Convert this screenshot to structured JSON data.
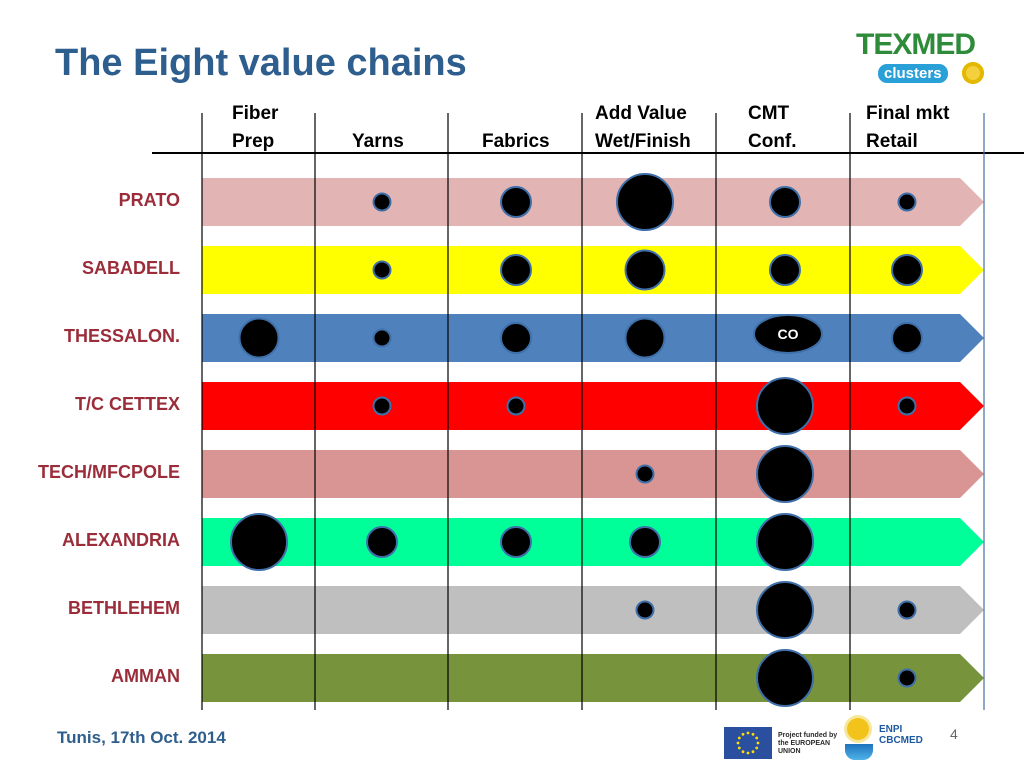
{
  "title": "The Eight value chains",
  "logo": {
    "top_text": "TEXMED",
    "bottom_text": "clusters"
  },
  "columns": [
    {
      "line1": "Fiber",
      "line2": "Prep"
    },
    {
      "line1": "",
      "line2": "Yarns"
    },
    {
      "line1": "",
      "line2": "Fabrics"
    },
    {
      "line1": "Add Value",
      "line2": "Wet/Finish"
    },
    {
      "line1": "CMT",
      "line2": "Conf."
    },
    {
      "line1": "Final mkt",
      "line2": "Retail"
    }
  ],
  "rows": [
    {
      "label": "PRATO",
      "color": "#e2b4b4",
      "dots": [
        null,
        "s",
        "m",
        "xl",
        "m",
        "s"
      ]
    },
    {
      "label": "SABADELL",
      "color": "#ffff00",
      "dots": [
        null,
        "s",
        "m",
        "l",
        "m",
        "m"
      ]
    },
    {
      "label": "THESSALON.",
      "color": "#4f81bd",
      "dots": [
        "l",
        "s",
        "m",
        "l",
        "co",
        "m"
      ]
    },
    {
      "label": "T/C CETTEX",
      "color": "#ff0000",
      "dots": [
        null,
        "s",
        "s",
        null,
        "xl",
        "s"
      ]
    },
    {
      "label": "TECH/MFCPOLE",
      "color": "#d99594",
      "dots": [
        null,
        null,
        null,
        "s",
        "xl",
        null
      ]
    },
    {
      "label": "ALEXANDRIA",
      "color": "#00ff99",
      "dots": [
        "xl",
        "m",
        "m",
        "m",
        "xl",
        null
      ]
    },
    {
      "label": "BETHLEHEM",
      "color": "#bfbfbf",
      "dots": [
        null,
        null,
        null,
        "s",
        "xl",
        "s"
      ]
    },
    {
      "label": "AMMAN",
      "color": "#77933c",
      "dots": [
        null,
        null,
        null,
        null,
        "xl",
        "s"
      ]
    }
  ],
  "dot_legend_note": "s=small, m=medium, l=large, xl=extra large, co=labeled oval",
  "co_text": "CO",
  "footer": {
    "date": "Tunis, 17th Oct. 2014",
    "page_number": "4",
    "eu_text": "Project funded by the EUROPEAN UNION",
    "enpi_text_line1": "ENPI",
    "enpi_text_line2": "CBCMED"
  },
  "colors": {
    "title": "#2e5e8e",
    "row_label": "#9b2d3a",
    "dot_fill": "#000000",
    "dot_stroke": "#3f6fa8"
  }
}
